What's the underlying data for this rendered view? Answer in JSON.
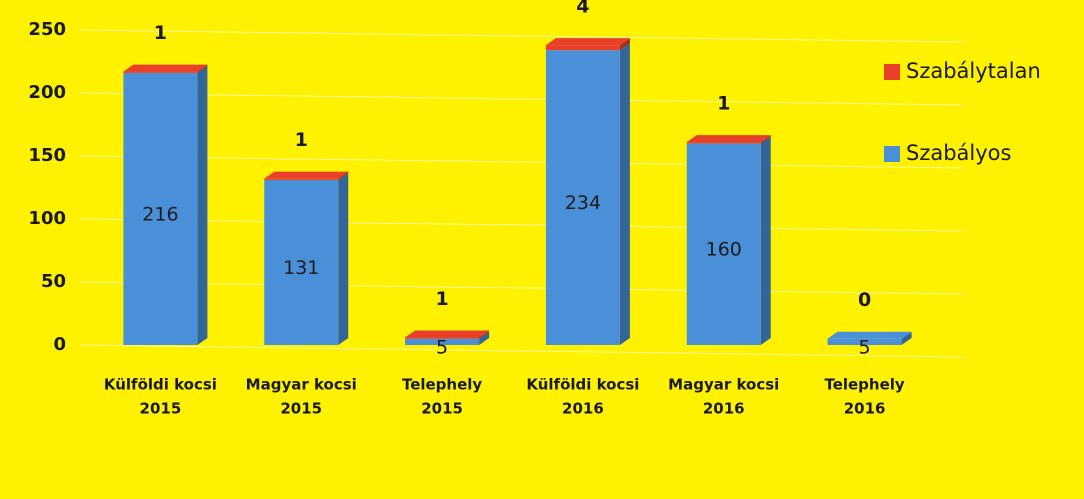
{
  "chart_data": {
    "type": "bar3d_stacked",
    "categories": [
      [
        "Külföldi kocsi",
        "2015"
      ],
      [
        "Magyar kocsi",
        "2015"
      ],
      [
        "Telephely",
        "2015"
      ],
      [
        "Külföldi kocsi",
        "2016"
      ],
      [
        "Magyar kocsi",
        "2016"
      ],
      [
        "Telephely",
        "2016"
      ]
    ],
    "series": [
      {
        "name": "Szabályos",
        "color": "#4a90d9",
        "values": [
          216,
          131,
          5,
          234,
          160,
          5
        ]
      },
      {
        "name": "Szabálytalan",
        "color": "#e8402a",
        "values": [
          1,
          1,
          1,
          4,
          1,
          0
        ]
      }
    ],
    "ylim": [
      0,
      250
    ],
    "yticks": [
      0,
      50,
      100,
      150,
      200,
      250
    ],
    "grid": true,
    "legend": "right"
  }
}
